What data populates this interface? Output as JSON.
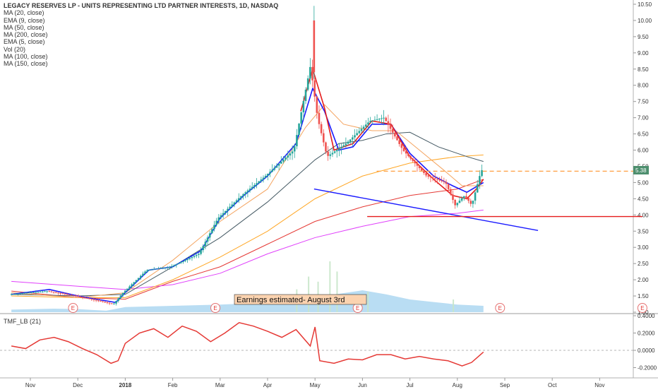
{
  "chart_data": {
    "type": "candlestick",
    "title": "LEGACY RESERVES LP - UNITS REPRESENTING LTD PARTNER INTERESTS, 1D, NASDAQ",
    "indicators": [
      "MA (20, close)",
      "EMA (9, close)",
      "MA (50, close)",
      "MA (200, close)",
      "EMA (5, close)",
      "Vol (20)",
      "MA (100, close)",
      "MA (150, close)"
    ],
    "x_ticks": [
      "Nov",
      "Dec",
      "2018",
      "Feb",
      "Mar",
      "Apr",
      "May",
      "Jun",
      "Jul",
      "Aug",
      "Sep",
      "Oct",
      "Nov"
    ],
    "price_axis": {
      "ylim": [
        1.0,
        10.5
      ],
      "ticks": [
        "10.50",
        "10.00",
        "9.50",
        "9.00",
        "8.50",
        "8.00",
        "7.50",
        "7.00",
        "6.50",
        "6.00",
        "5.50",
        "5.00",
        "4.50",
        "4.00",
        "3.50",
        "3.00",
        "2.50",
        "2.00",
        "1.50",
        "1.00"
      ]
    },
    "last_price_label": "5.38",
    "annotation": "Earnings estimated- August 3rd",
    "earnings_marker": "E",
    "earnings_months": [
      10.9,
      13.9,
      16.9,
      19.9,
      22.9
    ],
    "price_path": [
      [
        9.6,
        1.55
      ],
      [
        10.4,
        1.65
      ],
      [
        11.0,
        1.5
      ],
      [
        11.8,
        1.25
      ],
      [
        12.0,
        1.6
      ],
      [
        12.5,
        2.3
      ],
      [
        13.0,
        2.4
      ],
      [
        13.6,
        2.8
      ],
      [
        14.0,
        3.9
      ],
      [
        14.5,
        4.6
      ],
      [
        15.0,
        5.2
      ],
      [
        15.6,
        6.0
      ],
      [
        15.95,
        8.6
      ],
      [
        16.1,
        7.0
      ],
      [
        16.3,
        5.8
      ],
      [
        16.7,
        6.2
      ],
      [
        17.2,
        6.9
      ],
      [
        17.5,
        7.0
      ],
      [
        17.9,
        6.0
      ],
      [
        18.4,
        5.2
      ],
      [
        18.8,
        5.0
      ],
      [
        19.0,
        4.3
      ],
      [
        19.2,
        4.6
      ],
      [
        19.35,
        4.3
      ],
      [
        19.55,
        5.38
      ]
    ],
    "ma_lines": [
      {
        "name": "MA (200, close)",
        "color": "#e53935",
        "points": [
          [
            9.6,
            1.65
          ],
          [
            11.0,
            1.45
          ],
          [
            12.0,
            1.4
          ],
          [
            13.0,
            1.95
          ],
          [
            14.0,
            2.4
          ],
          [
            15.0,
            3.1
          ],
          [
            16.0,
            3.8
          ],
          [
            17.0,
            4.25
          ],
          [
            18.0,
            4.6
          ],
          [
            19.0,
            4.8
          ],
          [
            19.55,
            5.1
          ]
        ]
      },
      {
        "name": "MA (150, close)",
        "color": "#e040fb",
        "points": [
          [
            9.6,
            1.95
          ],
          [
            11.0,
            1.8
          ],
          [
            12.0,
            1.7
          ],
          [
            13.0,
            1.85
          ],
          [
            14.0,
            2.2
          ],
          [
            15.0,
            2.8
          ],
          [
            16.0,
            3.3
          ],
          [
            17.0,
            3.65
          ],
          [
            18.0,
            3.95
          ],
          [
            19.0,
            4.05
          ],
          [
            19.55,
            4.15
          ]
        ]
      },
      {
        "name": "MA (100, close)",
        "color": "#ffa726",
        "points": [
          [
            9.6,
            1.5
          ],
          [
            11.0,
            1.45
          ],
          [
            12.0,
            1.45
          ],
          [
            13.0,
            2.0
          ],
          [
            14.0,
            2.7
          ],
          [
            15.0,
            3.5
          ],
          [
            16.0,
            4.5
          ],
          [
            17.0,
            5.2
          ],
          [
            18.0,
            5.6
          ],
          [
            19.0,
            5.8
          ],
          [
            19.55,
            5.85
          ]
        ]
      },
      {
        "name": "MA (50, close)",
        "color": "#455a64",
        "points": [
          [
            9.6,
            1.55
          ],
          [
            11.0,
            1.5
          ],
          [
            12.0,
            1.55
          ],
          [
            13.0,
            2.4
          ],
          [
            14.0,
            3.3
          ],
          [
            15.0,
            4.4
          ],
          [
            16.0,
            5.7
          ],
          [
            16.5,
            6.2
          ],
          [
            17.0,
            6.3
          ],
          [
            17.5,
            6.5
          ],
          [
            18.0,
            6.55
          ],
          [
            18.6,
            6.1
          ],
          [
            19.2,
            5.8
          ],
          [
            19.55,
            5.65
          ]
        ]
      },
      {
        "name": "MA (20, close)",
        "color": "#f4a460",
        "points": [
          [
            9.6,
            1.6
          ],
          [
            11.0,
            1.45
          ],
          [
            12.0,
            1.6
          ],
          [
            13.0,
            2.6
          ],
          [
            14.0,
            3.8
          ],
          [
            15.0,
            4.8
          ],
          [
            15.8,
            6.7
          ],
          [
            16.2,
            7.4
          ],
          [
            16.6,
            6.8
          ],
          [
            17.2,
            6.6
          ],
          [
            17.7,
            6.6
          ],
          [
            18.2,
            6.0
          ],
          [
            18.7,
            5.4
          ],
          [
            19.1,
            4.9
          ],
          [
            19.55,
            4.9
          ]
        ]
      },
      {
        "name": "EMA (9, close)",
        "color": "#1a1aff",
        "points": [
          [
            9.6,
            1.55
          ],
          [
            10.4,
            1.7
          ],
          [
            11.0,
            1.5
          ],
          [
            11.8,
            1.3
          ],
          [
            12.0,
            1.6
          ],
          [
            12.5,
            2.3
          ],
          [
            13.0,
            2.4
          ],
          [
            13.6,
            2.9
          ],
          [
            14.0,
            3.9
          ],
          [
            14.5,
            4.6
          ],
          [
            15.0,
            5.2
          ],
          [
            15.6,
            6.2
          ],
          [
            15.95,
            7.9
          ],
          [
            16.2,
            7.2
          ],
          [
            16.5,
            6.0
          ],
          [
            16.8,
            6.1
          ],
          [
            17.2,
            6.8
          ],
          [
            17.6,
            6.8
          ],
          [
            18.0,
            5.9
          ],
          [
            18.5,
            5.2
          ],
          [
            18.9,
            4.9
          ],
          [
            19.2,
            4.7
          ],
          [
            19.55,
            5.0
          ]
        ]
      },
      {
        "name": "EMA (5, close)",
        "color": "#e51c1c",
        "points": [
          [
            15.7,
            7.2
          ],
          [
            15.95,
            8.5
          ],
          [
            16.2,
            7.3
          ],
          [
            16.4,
            6.0
          ],
          [
            16.8,
            6.2
          ],
          [
            17.2,
            6.9
          ],
          [
            17.6,
            6.8
          ],
          [
            18.0,
            5.8
          ],
          [
            18.5,
            5.1
          ],
          [
            18.9,
            4.6
          ],
          [
            19.2,
            4.5
          ],
          [
            19.4,
            4.8
          ],
          [
            19.55,
            5.1
          ]
        ]
      }
    ],
    "trendlines": [
      {
        "kind": "support",
        "color": "#1a1aff",
        "from": [
          15.98,
          4.8
        ],
        "to": [
          20.7,
          3.52
        ]
      },
      {
        "kind": "horizontal",
        "color": "#e51c1c",
        "from": [
          17.1,
          3.95
        ],
        "to": [
          22.9,
          3.95
        ]
      },
      {
        "kind": "horizontal-dashed",
        "color": "#ff9f40",
        "from": [
          17.3,
          5.35
        ],
        "to": [
          22.9,
          5.35
        ]
      }
    ],
    "volume_profile": [
      [
        9.6,
        0.1
      ],
      [
        10.5,
        0.14
      ],
      [
        11.0,
        0.12
      ],
      [
        11.6,
        0.06
      ],
      [
        12.0,
        0.2
      ],
      [
        13.0,
        0.25
      ],
      [
        14.0,
        0.3
      ],
      [
        15.0,
        0.38
      ],
      [
        15.8,
        0.58
      ],
      [
        16.2,
        0.63
      ],
      [
        16.6,
        0.75
      ],
      [
        17.0,
        0.86
      ],
      [
        17.5,
        0.7
      ],
      [
        18.0,
        0.5
      ],
      [
        18.5,
        0.4
      ],
      [
        19.0,
        0.3
      ],
      [
        19.55,
        0.25
      ]
    ],
    "oscillator": {
      "label": "TMF_LB (21)",
      "ticks": [
        "0.4000",
        "0.2000",
        "0.0000",
        "-0.2000"
      ],
      "ylim": [
        -0.28,
        0.46
      ],
      "zero_line": 0.0,
      "color": "#e53935",
      "points": [
        [
          9.6,
          0.05
        ],
        [
          9.9,
          0.02
        ],
        [
          10.2,
          0.12
        ],
        [
          10.5,
          0.15
        ],
        [
          10.8,
          0.1
        ],
        [
          11.1,
          0.02
        ],
        [
          11.4,
          -0.05
        ],
        [
          11.7,
          -0.15
        ],
        [
          11.85,
          -0.12
        ],
        [
          12.0,
          0.08
        ],
        [
          12.3,
          0.2
        ],
        [
          12.6,
          0.25
        ],
        [
          12.9,
          0.15
        ],
        [
          13.2,
          0.28
        ],
        [
          13.5,
          0.22
        ],
        [
          13.8,
          0.1
        ],
        [
          14.1,
          0.2
        ],
        [
          14.4,
          0.32
        ],
        [
          14.7,
          0.28
        ],
        [
          15.0,
          0.22
        ],
        [
          15.3,
          0.15
        ],
        [
          15.6,
          0.24
        ],
        [
          15.9,
          0.05
        ],
        [
          16.0,
          0.27
        ],
        [
          16.1,
          -0.12
        ],
        [
          16.4,
          -0.15
        ],
        [
          16.7,
          -0.1
        ],
        [
          17.0,
          -0.11
        ],
        [
          17.3,
          -0.05
        ],
        [
          17.6,
          -0.05
        ],
        [
          17.9,
          -0.1
        ],
        [
          18.2,
          -0.07
        ],
        [
          18.5,
          -0.1
        ],
        [
          18.8,
          -0.12
        ],
        [
          19.1,
          -0.18
        ],
        [
          19.3,
          -0.14
        ],
        [
          19.55,
          -0.02
        ]
      ]
    }
  }
}
